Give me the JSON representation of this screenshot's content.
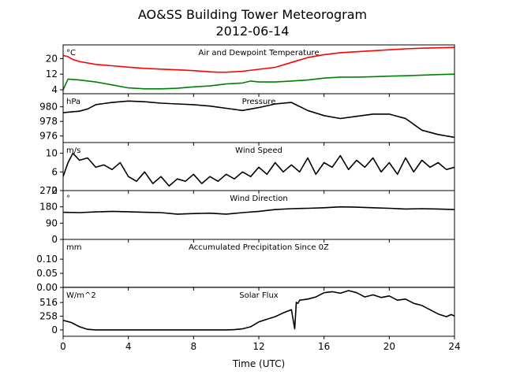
{
  "figure": {
    "title": "AO&SS Building Tower Meteorogram",
    "subtitle": "2012-06-14",
    "xlabel": "Time (UTC)",
    "x_ticks": [
      0,
      4,
      8,
      12,
      16,
      20,
      24
    ],
    "xlim": [
      0,
      24
    ]
  },
  "chart_data": [
    {
      "type": "line",
      "title": "Air and Dewpoint Temperature",
      "unit": "°C",
      "ylim": [
        2,
        27
      ],
      "yticks": [
        4,
        12,
        20
      ],
      "series": [
        {
          "color": "#ff0000",
          "x": [
            0,
            0.3,
            0.6,
            1,
            2,
            3,
            4,
            5,
            6,
            7,
            8,
            9,
            9.5,
            10,
            11,
            12,
            13,
            14,
            15,
            16,
            17,
            18,
            19,
            20,
            21,
            22,
            23,
            24
          ],
          "y": [
            21.5,
            21,
            19.5,
            18.5,
            17,
            16.3,
            15.6,
            15,
            14.6,
            14.2,
            13.8,
            13.2,
            13,
            13,
            13.5,
            14.5,
            15.5,
            18,
            20.5,
            22,
            23,
            23.5,
            24,
            24.5,
            25,
            25.3,
            25.5,
            25.7
          ]
        },
        {
          "color": "#008000",
          "x": [
            0,
            0.3,
            1,
            2,
            3,
            4,
            5,
            6,
            7,
            8,
            9,
            10,
            11,
            11.5,
            12,
            13,
            14,
            15,
            16,
            17,
            18,
            19,
            20,
            21,
            22,
            23,
            24
          ],
          "y": [
            4,
            9.5,
            9,
            8,
            6.5,
            5,
            4.5,
            4.5,
            4.8,
            5.5,
            6,
            7,
            7.5,
            8.5,
            8,
            8,
            8.5,
            9,
            10,
            10.5,
            10.5,
            10.7,
            11,
            11.2,
            11.5,
            11.8,
            12
          ]
        }
      ]
    },
    {
      "type": "line",
      "title": "Pressure",
      "unit": "hPa",
      "ylim": [
        975.1,
        981.8
      ],
      "yticks": [
        976,
        978,
        980
      ],
      "series": [
        {
          "color": "#000000",
          "x": [
            0,
            0.5,
            1,
            1.5,
            2,
            3,
            4,
            5,
            6,
            7,
            8,
            9,
            10,
            11,
            12,
            13,
            14,
            15,
            16,
            17,
            18,
            19,
            20,
            21,
            22,
            23,
            24
          ],
          "y": [
            979.2,
            979.3,
            979.4,
            979.7,
            980.3,
            980.6,
            980.8,
            980.7,
            980.5,
            980.4,
            980.3,
            980.1,
            979.8,
            979.5,
            979.9,
            980.4,
            980.6,
            979.5,
            978.8,
            978.4,
            978.7,
            979,
            979,
            978.4,
            976.8,
            976.2,
            975.8
          ]
        }
      ]
    },
    {
      "type": "line",
      "title": "Wind Speed",
      "unit": "m/s",
      "ylim": [
        2,
        12.3
      ],
      "yticks": [
        2,
        6,
        10
      ],
      "series": [
        {
          "color": "#000000",
          "x": [
            0,
            0.3,
            0.6,
            1,
            1.5,
            2,
            2.5,
            3,
            3.5,
            4,
            4.5,
            5,
            5.5,
            6,
            6.5,
            7,
            7.5,
            8,
            8.5,
            9,
            9.5,
            10,
            10.5,
            11,
            11.5,
            12,
            12.5,
            13,
            13.5,
            14,
            14.5,
            15,
            15.5,
            16,
            16.5,
            17,
            17.5,
            18,
            18.5,
            19,
            19.5,
            20,
            20.5,
            21,
            21.5,
            22,
            22.5,
            23,
            23.5,
            24
          ],
          "y": [
            5,
            8,
            10,
            8.5,
            9,
            7,
            7.5,
            6.5,
            8,
            5,
            4,
            6,
            3.5,
            5,
            3,
            4.5,
            4,
            5.5,
            3.5,
            5,
            4,
            5.5,
            4.5,
            6,
            5,
            7,
            5.5,
            8,
            6,
            7.5,
            6,
            9,
            5.5,
            8,
            7,
            9.5,
            6.5,
            8.5,
            7,
            9,
            6,
            8,
            5.5,
            9,
            6,
            8.5,
            7,
            8,
            6.5,
            7
          ]
        }
      ]
    },
    {
      "type": "line",
      "title": "Wind Direction",
      "unit": "°",
      "ylim": [
        0,
        270
      ],
      "yticks": [
        0,
        90,
        180,
        270
      ],
      "series": [
        {
          "color": "#000000",
          "x": [
            0,
            1,
            2,
            3,
            4,
            5,
            6,
            7,
            8,
            9,
            10,
            11,
            12,
            13,
            14,
            15,
            16,
            17,
            18,
            19,
            20,
            21,
            22,
            23,
            24
          ],
          "y": [
            150,
            148,
            152,
            155,
            153,
            150,
            148,
            140,
            143,
            145,
            140,
            148,
            155,
            165,
            170,
            172,
            175,
            180,
            178,
            175,
            172,
            168,
            170,
            168,
            165
          ]
        }
      ]
    },
    {
      "type": "line",
      "title": "Accumulated Precipitation Since 0Z",
      "unit": "mm",
      "ylim": [
        0,
        0.17
      ],
      "yticks": [
        0.0,
        0.05,
        0.1
      ],
      "ytick_format": "2dec",
      "series": [
        {
          "color": "#000000",
          "x": [
            0,
            24
          ],
          "y": [
            0,
            0
          ]
        }
      ]
    },
    {
      "type": "line",
      "title": "Solar Flux",
      "unit": "W/m^2",
      "ylim": [
        -120,
        800
      ],
      "yticks": [
        0,
        258,
        516
      ],
      "series": [
        {
          "color": "#000000",
          "x": [
            0,
            0.5,
            1,
            1.5,
            2,
            3,
            4,
            5,
            6,
            7,
            8,
            9,
            10,
            10.5,
            11,
            11.5,
            12,
            12.5,
            13,
            13.5,
            14,
            14.2,
            14.3,
            14.4,
            14.5,
            15,
            15.5,
            16,
            16.5,
            17,
            17.5,
            18,
            18.5,
            19,
            19.5,
            20,
            20.5,
            21,
            21.5,
            22,
            22.5,
            23,
            23.5,
            23.8,
            24
          ],
          "y": [
            180,
            140,
            60,
            10,
            0,
            0,
            0,
            0,
            0,
            0,
            0,
            0,
            0,
            5,
            20,
            60,
            150,
            200,
            250,
            320,
            380,
            20,
            520,
            500,
            560,
            580,
            620,
            700,
            720,
            690,
            740,
            700,
            620,
            660,
            610,
            640,
            560,
            580,
            500,
            460,
            380,
            300,
            250,
            290,
            260
          ]
        }
      ]
    }
  ]
}
